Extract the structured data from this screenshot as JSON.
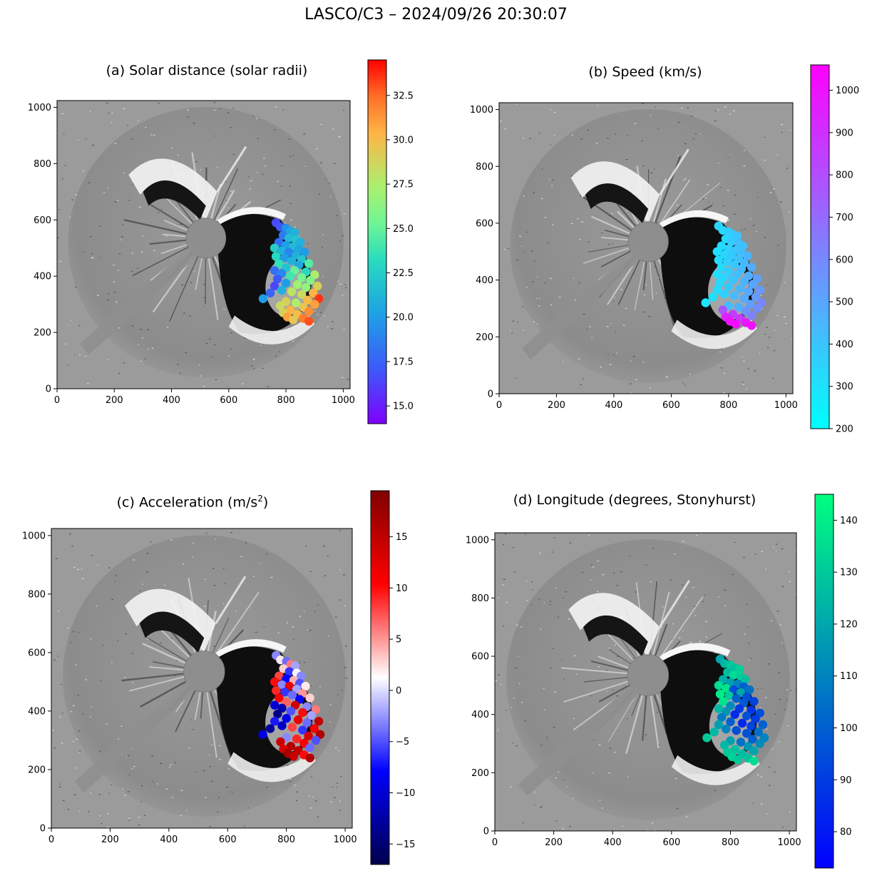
{
  "figure": {
    "title": "LASCO/C3 – 2024/09/26 20:30:07",
    "image_x_ticks": [
      "0",
      "200",
      "400",
      "600",
      "800",
      "1000"
    ],
    "image_y_ticks": [
      "0",
      "200",
      "400",
      "600",
      "800",
      "1000"
    ]
  },
  "panels": [
    {
      "key": "a",
      "title": "(a) Solar distance (solar radii)",
      "colormap": "rainbow",
      "colorbar": {
        "min": 14.0,
        "max": 34.5,
        "ticks": [
          15.0,
          17.5,
          20.0,
          22.5,
          25.0,
          27.5,
          30.0,
          32.5
        ],
        "tick_labels": [
          "15.0",
          "17.5",
          "20.0",
          "22.5",
          "25.0",
          "27.5",
          "30.0",
          "32.5"
        ]
      }
    },
    {
      "key": "b",
      "title": "(b) Speed (km/s)",
      "colormap": "cool",
      "colorbar": {
        "min": 200,
        "max": 1060,
        "ticks": [
          200,
          300,
          400,
          500,
          600,
          700,
          800,
          900,
          1000
        ],
        "tick_labels": [
          "200",
          "300",
          "400",
          "500",
          "600",
          "700",
          "800",
          "900",
          "1000"
        ]
      }
    },
    {
      "key": "c",
      "title_main": "(c) Acceleration (m/s",
      "title_sup": "2",
      "title_end": ")",
      "colormap": "seismic",
      "colorbar": {
        "min": -17,
        "max": 19.5,
        "ticks": [
          -15,
          -10,
          -5,
          0,
          5,
          10,
          15
        ],
        "tick_labels": [
          "−15",
          "−10",
          "−5",
          "0",
          "5",
          "10",
          "15"
        ]
      }
    },
    {
      "key": "d",
      "title": "(d) Longitude (degrees, Stonyhurst)",
      "colormap": "winter",
      "colorbar": {
        "min": 73,
        "max": 145,
        "ticks": [
          80,
          90,
          100,
          110,
          120,
          130,
          140
        ],
        "tick_labels": [
          "80",
          "90",
          "100",
          "110",
          "120",
          "130",
          "140"
        ]
      }
    }
  ],
  "chart_data": {
    "type": "scatter",
    "description_source": "Tracked CME feature points overplotted on LASCO/C3 running-difference image (pixel coordinates 0-1024)",
    "xlim": [
      0,
      1024
    ],
    "ylim": [
      0,
      1024
    ],
    "points": [
      {
        "x": 765,
        "y": 590,
        "r": 16.5,
        "v": 350,
        "a": -3,
        "lon": 120
      },
      {
        "x": 780,
        "y": 575,
        "r": 17.0,
        "v": 330,
        "a": 2,
        "lon": 125
      },
      {
        "x": 800,
        "y": 570,
        "r": 19.5,
        "v": 360,
        "a": -4,
        "lon": 130
      },
      {
        "x": 815,
        "y": 560,
        "r": 20.5,
        "v": 380,
        "a": 6,
        "lon": 128
      },
      {
        "x": 830,
        "y": 555,
        "r": 21.0,
        "v": 400,
        "a": -2,
        "lon": 132
      },
      {
        "x": 790,
        "y": 545,
        "r": 18.5,
        "v": 330,
        "a": 3,
        "lon": 126
      },
      {
        "x": 810,
        "y": 535,
        "r": 21.5,
        "v": 380,
        "a": -6,
        "lon": 135
      },
      {
        "x": 835,
        "y": 530,
        "r": 22.0,
        "v": 420,
        "a": 1,
        "lon": 131
      },
      {
        "x": 775,
        "y": 520,
        "r": 18.0,
        "v": 320,
        "a": 8,
        "lon": 122
      },
      {
        "x": 850,
        "y": 520,
        "r": 21.0,
        "v": 410,
        "a": -3,
        "lon": 127
      },
      {
        "x": 800,
        "y": 510,
        "r": 20.0,
        "v": 350,
        "a": -8,
        "lon": 118
      },
      {
        "x": 825,
        "y": 505,
        "r": 21.5,
        "v": 400,
        "a": 4,
        "lon": 110
      },
      {
        "x": 760,
        "y": 500,
        "r": 22.5,
        "v": 300,
        "a": 10,
        "lon": 135
      },
      {
        "x": 845,
        "y": 495,
        "r": 20.5,
        "v": 420,
        "a": -5,
        "lon": 100
      },
      {
        "x": 785,
        "y": 490,
        "r": 21.0,
        "v": 340,
        "a": -3,
        "lon": 138
      },
      {
        "x": 810,
        "y": 485,
        "r": 19.0,
        "v": 380,
        "a": 12,
        "lon": 95
      },
      {
        "x": 865,
        "y": 485,
        "r": 20.0,
        "v": 450,
        "a": 2,
        "lon": 105
      },
      {
        "x": 835,
        "y": 475,
        "r": 21.0,
        "v": 410,
        "a": -2,
        "lon": 120
      },
      {
        "x": 765,
        "y": 470,
        "r": 23.0,
        "v": 320,
        "a": 9,
        "lon": 140
      },
      {
        "x": 795,
        "y": 465,
        "r": 20.0,
        "v": 360,
        "a": -6,
        "lon": 130
      },
      {
        "x": 855,
        "y": 460,
        "r": 22.0,
        "v": 440,
        "a": 5,
        "lon": 95
      },
      {
        "x": 820,
        "y": 455,
        "r": 21.0,
        "v": 390,
        "a": -4,
        "lon": 100
      },
      {
        "x": 775,
        "y": 445,
        "r": 23.5,
        "v": 330,
        "a": 11,
        "lon": 138
      },
      {
        "x": 880,
        "y": 445,
        "r": 24.5,
        "v": 480,
        "a": 3,
        "lon": 92
      },
      {
        "x": 845,
        "y": 440,
        "r": 20.5,
        "v": 430,
        "a": -8,
        "lon": 98
      },
      {
        "x": 800,
        "y": 430,
        "r": 22.0,
        "v": 370,
        "a": 7,
        "lon": 112
      },
      {
        "x": 760,
        "y": 420,
        "r": 18.0,
        "v": 310,
        "a": -10,
        "lon": 125
      },
      {
        "x": 830,
        "y": 420,
        "r": 25.0,
        "v": 420,
        "a": 14,
        "lon": 90
      },
      {
        "x": 870,
        "y": 415,
        "r": 23.0,
        "v": 470,
        "a": -3,
        "lon": 88
      },
      {
        "x": 785,
        "y": 410,
        "r": 19.0,
        "v": 350,
        "a": -12,
        "lon": 115
      },
      {
        "x": 900,
        "y": 405,
        "r": 27.5,
        "v": 520,
        "a": 6,
        "lon": 95
      },
      {
        "x": 815,
        "y": 400,
        "r": 24.0,
        "v": 400,
        "a": -5,
        "lon": 85
      },
      {
        "x": 855,
        "y": 395,
        "r": 25.5,
        "v": 460,
        "a": 10,
        "lon": 96
      },
      {
        "x": 770,
        "y": 390,
        "r": 17.0,
        "v": 330,
        "a": -14,
        "lon": 108
      },
      {
        "x": 885,
        "y": 385,
        "r": 26.0,
        "v": 500,
        "a": -2,
        "lon": 90
      },
      {
        "x": 800,
        "y": 375,
        "r": 20.0,
        "v": 380,
        "a": -9,
        "lon": 100
      },
      {
        "x": 840,
        "y": 370,
        "r": 27.0,
        "v": 450,
        "a": 12,
        "lon": 84
      },
      {
        "x": 760,
        "y": 365,
        "r": 16.5,
        "v": 320,
        "a": -7,
        "lon": 118
      },
      {
        "x": 910,
        "y": 365,
        "r": 29.0,
        "v": 550,
        "a": 15,
        "lon": 100
      },
      {
        "x": 870,
        "y": 360,
        "r": 26.5,
        "v": 490,
        "a": -4,
        "lon": 92
      },
      {
        "x": 785,
        "y": 350,
        "r": 21.0,
        "v": 360,
        "a": -11,
        "lon": 110
      },
      {
        "x": 820,
        "y": 345,
        "r": 28.0,
        "v": 430,
        "a": 8,
        "lon": 95
      },
      {
        "x": 745,
        "y": 340,
        "r": 17.5,
        "v": 300,
        "a": -13,
        "lon": 125
      },
      {
        "x": 895,
        "y": 340,
        "r": 30.5,
        "v": 540,
        "a": 11,
        "lon": 105
      },
      {
        "x": 855,
        "y": 335,
        "r": 28.5,
        "v": 480,
        "a": -6,
        "lon": 96
      },
      {
        "x": 720,
        "y": 320,
        "r": 20.0,
        "v": 280,
        "a": -9,
        "lon": 130
      },
      {
        "x": 915,
        "y": 320,
        "r": 33.5,
        "v": 600,
        "a": 16,
        "lon": 110
      },
      {
        "x": 875,
        "y": 315,
        "r": 30.0,
        "v": 520,
        "a": 13,
        "lon": 100
      },
      {
        "x": 800,
        "y": 310,
        "r": 29.0,
        "v": 420,
        "a": -3,
        "lon": 118
      },
      {
        "x": 835,
        "y": 305,
        "r": 27.5,
        "v": 470,
        "a": 9,
        "lon": 105
      },
      {
        "x": 900,
        "y": 300,
        "r": 31.0,
        "v": 580,
        "a": -5,
        "lon": 112
      },
      {
        "x": 780,
        "y": 295,
        "r": 28.5,
        "v": 780,
        "a": 14,
        "lon": 125
      },
      {
        "x": 860,
        "y": 290,
        "r": 29.5,
        "v": 560,
        "a": 11,
        "lon": 115
      },
      {
        "x": 815,
        "y": 280,
        "r": 30.5,
        "v": 850,
        "a": 16,
        "lon": 128
      },
      {
        "x": 880,
        "y": 275,
        "r": 31.5,
        "v": 620,
        "a": -4,
        "lon": 120
      },
      {
        "x": 790,
        "y": 270,
        "r": 29.0,
        "v": 950,
        "a": 13,
        "lon": 130
      },
      {
        "x": 840,
        "y": 265,
        "r": 30.0,
        "v": 880,
        "a": 15,
        "lon": 126
      },
      {
        "x": 805,
        "y": 255,
        "r": 31.0,
        "v": 1000,
        "a": 17,
        "lon": 132
      },
      {
        "x": 860,
        "y": 250,
        "r": 32.0,
        "v": 980,
        "a": 10,
        "lon": 128
      },
      {
        "x": 825,
        "y": 245,
        "r": 29.5,
        "v": 1020,
        "a": 14,
        "lon": 130
      },
      {
        "x": 880,
        "y": 240,
        "r": 33.0,
        "v": 1010,
        "a": 16,
        "lon": 135
      }
    ]
  }
}
